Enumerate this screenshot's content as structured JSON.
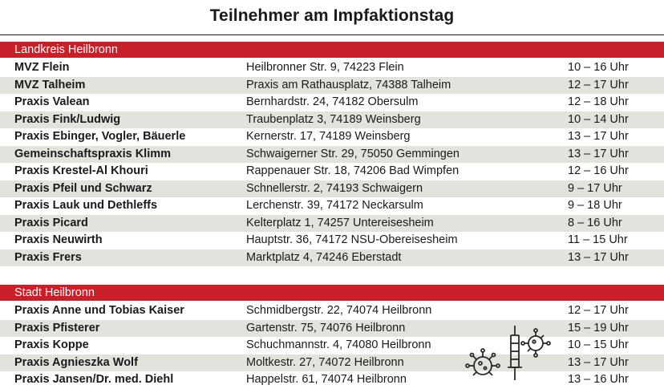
{
  "title": "Teilnehmer am Impfaktionstag",
  "sections": [
    {
      "name": "Landkreis Heilbronn",
      "rows": [
        {
          "name": "MVZ Flein",
          "address": "Heilbronner Str. 9, 74223 Flein",
          "hours": "10 – 16 Uhr"
        },
        {
          "name": "MVZ Talheim",
          "address": "Praxis am Rathausplatz, 74388 Talheim",
          "hours": "12 – 17 Uhr"
        },
        {
          "name": "Praxis Valean",
          "address": "Bernhardstr. 24, 74182 Obersulm",
          "hours": "12 – 18 Uhr"
        },
        {
          "name": "Praxis Fink/Ludwig",
          "address": "Traubenplatz 3, 74189 Weinsberg",
          "hours": "10 – 14 Uhr"
        },
        {
          "name": "Praxis Ebinger, Vogler, Bäuerle",
          "address": "Kernerstr. 17, 74189 Weinsberg",
          "hours": "13 – 17 Uhr"
        },
        {
          "name": "Gemeinschaftspraxis Klimm",
          "address": "Schwaigerner Str. 29, 75050 Gemmingen",
          "hours": "13 – 17 Uhr"
        },
        {
          "name": "Praxis Krestel-Al Khouri",
          "address": "Rappenauer Str. 18, 74206 Bad Wimpfen",
          "hours": "12 – 16 Uhr"
        },
        {
          "name": "Praxis Pfeil und Schwarz",
          "address": "Schnellerstr. 2, 74193 Schwaigern",
          "hours": "9 – 17 Uhr"
        },
        {
          "name": "Praxis Lauk und Dethleffs",
          "address": "Lerchenstr. 39, 74172 Neckarsulm",
          "hours": "9 – 18 Uhr"
        },
        {
          "name": "Praxis Picard",
          "address": "Kelterplatz 1, 74257 Untereisesheim",
          "hours": "8 – 16 Uhr"
        },
        {
          "name": "Praxis Neuwirth",
          "address": "Hauptstr. 36, 74172 NSU-Obereisesheim",
          "hours": "11 – 15 Uhr"
        },
        {
          "name": "Praxis Frers",
          "address": "Marktplatz 4, 74246 Eberstadt",
          "hours": "13 – 17 Uhr"
        }
      ]
    },
    {
      "name": "Stadt Heilbronn",
      "rows": [
        {
          "name": "Praxis Anne und Tobias Kaiser",
          "address": "Schmidbergstr. 22, 74074 Heilbronn",
          "hours": "12 – 17 Uhr"
        },
        {
          "name": "Praxis Pfisterer",
          "address": "Gartenstr. 75, 74076 Heilbronn",
          "hours": "15 – 19 Uhr"
        },
        {
          "name": "Praxis Koppe",
          "address": "Schuchmannstr. 4, 74080 Heilbronn",
          "hours": "10 – 15 Uhr"
        },
        {
          "name": "Praxis Agnieszka Wolf",
          "address": "Moltkestr. 27, 74072 Heilbronn",
          "hours": "13 – 17 Uhr"
        },
        {
          "name": "Praxis Jansen/Dr. med. Diehl",
          "address": "Happelstr. 61, 74074 Heilbronn",
          "hours": "13 – 16 Uhr"
        }
      ]
    }
  ],
  "illustration": {
    "icons": [
      "virus-icon",
      "syringe-icon"
    ],
    "color": "#2a2a2a"
  }
}
